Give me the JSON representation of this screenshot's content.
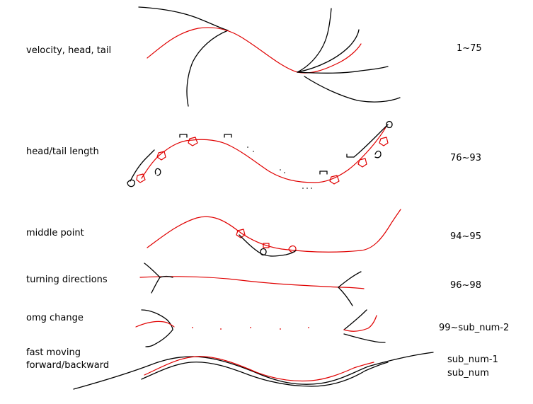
{
  "rows": [
    {
      "label": "velocity, head, tail",
      "range": "1~75"
    },
    {
      "label": "head/tail length",
      "range": "76~93"
    },
    {
      "label": "middle point",
      "range": "94~95"
    },
    {
      "label": "turning directions",
      "range": "96~98"
    },
    {
      "label": "omg change",
      "range": "99~sub_num-2"
    },
    {
      "label_line1": "fast moving",
      "label_line2": "forward/backward",
      "range_line1": "sub_num-1",
      "range_line2": "sub_num"
    }
  ],
  "colors": {
    "stroke_black": "#000000",
    "stroke_red": "#e00000",
    "background": "#ffffff"
  }
}
